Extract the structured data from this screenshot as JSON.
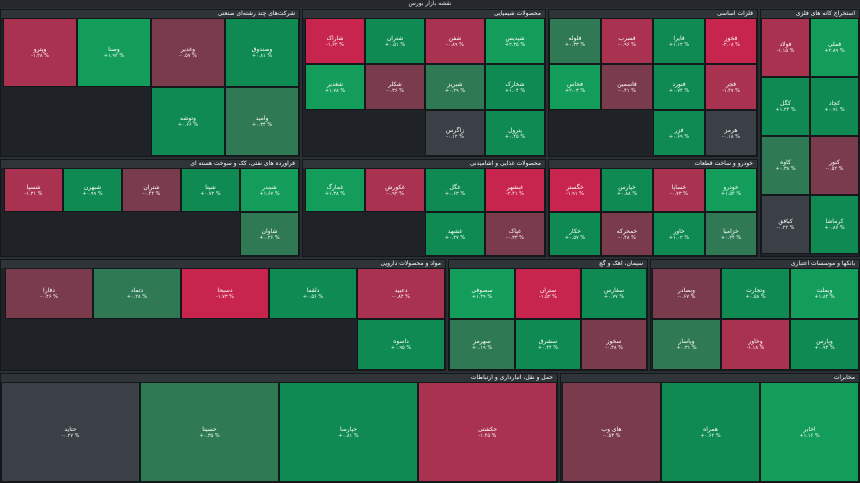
{
  "header": {
    "title": "نقشه بازار بورس"
  },
  "palette": {
    "strong_pos": "#139c5a",
    "pos": "#0f8a52",
    "weak_pos": "#2f7a55",
    "neutral": "#3b4046",
    "weak_neg": "#7a3b4c",
    "neg": "#a8324f",
    "strong_neg": "#c7254e"
  },
  "sectors": [
    {
      "name": "استخراج کانه های فلزی",
      "tiles": [
        {
          "s": "فملی",
          "c": "+۲.۸۹ %",
          "t": "strong_pos"
        },
        {
          "s": "فولاد",
          "c": "-۱.۱۵ %",
          "t": "neg"
        },
        {
          "s": "کچاد",
          "c": "+۰.۹۱ %",
          "t": "pos"
        },
        {
          "s": "کگل",
          "c": "+۱.۲۴ %",
          "t": "pos"
        },
        {
          "s": "کنور",
          "c": "-۰.۵۲ %",
          "t": "weak_neg"
        },
        {
          "s": "کاوه",
          "c": "+۰.۳۸ %",
          "t": "weak_pos"
        },
        {
          "s": "کرماشا",
          "c": "+۰.۸۷ %",
          "t": "pos"
        },
        {
          "s": "کبافق",
          "c": "-۰.۲۲ %",
          "t": "neutral"
        }
      ]
    },
    {
      "name": "فلزات اساسی",
      "tiles": [
        {
          "s": "فخوز",
          "c": "-۲.۰۸ %",
          "t": "strong_neg"
        },
        {
          "s": "فایرا",
          "c": "+۱.۱۲ %",
          "t": "pos"
        },
        {
          "s": "فسرب",
          "c": "-۰.۹۶ %",
          "t": "neg"
        },
        {
          "s": "فلوله",
          "c": "+۰.۳۳ %",
          "t": "weak_pos"
        },
        {
          "s": "فجر",
          "c": "-۱.۴۷ %",
          "t": "neg"
        },
        {
          "s": "فنورد",
          "c": "+۰.۷۴ %",
          "t": "pos"
        },
        {
          "s": "فاسمین",
          "c": "-۰.۴۱ %",
          "t": "weak_neg"
        },
        {
          "s": "فخاس",
          "c": "+۲.۰۳ %",
          "t": "strong_pos"
        },
        {
          "s": "هرمز",
          "c": "-۰.۱۸ %",
          "t": "neutral"
        },
        {
          "s": "فزر",
          "c": "+۰.۶۹ %",
          "t": "pos"
        }
      ]
    },
    {
      "name": "محصولات شیمیایی",
      "tiles": [
        {
          "s": "شپدیس",
          "c": "+۲.۳۵ %",
          "t": "strong_pos"
        },
        {
          "s": "شفن",
          "c": "-۰.۸۹ %",
          "t": "neg"
        },
        {
          "s": "شتران",
          "c": "+۰.۵۱ %",
          "t": "pos"
        },
        {
          "s": "شاراک",
          "c": "-۱.۶۲ %",
          "t": "strong_neg"
        },
        {
          "s": "شخارک",
          "c": "+۱.۰۴ %",
          "t": "pos"
        },
        {
          "s": "شبریز",
          "c": "+۰.۲۹ %",
          "t": "weak_pos"
        },
        {
          "s": "شکلر",
          "c": "-۰.۳۶ %",
          "t": "weak_neg"
        },
        {
          "s": "شغدیر",
          "c": "+۱.۷۸ %",
          "t": "strong_pos"
        },
        {
          "s": "پترول",
          "c": "+۰.۴۵ %",
          "t": "pos"
        },
        {
          "s": "زاگرس",
          "c": "-۰.۱۲ %",
          "t": "neutral"
        }
      ]
    },
    {
      "name": "شرکت‌های چند رشته‌ای صنعتی",
      "tiles": [
        {
          "s": "وصندوق",
          "c": "+۰.۸۱ %",
          "t": "pos"
        },
        {
          "s": "وغدیر",
          "c": "-۰.۵۷ %",
          "t": "weak_neg"
        },
        {
          "s": "وصنا",
          "c": "+۱.۹۲ %",
          "t": "strong_pos"
        },
        {
          "s": "وپترو",
          "c": "-۱.۲۸ %",
          "t": "neg"
        },
        {
          "s": "وامید",
          "c": "+۰.۳۴ %",
          "t": "weak_pos"
        },
        {
          "s": "وتوشه",
          "c": "+۰.۶۶ %",
          "t": "pos"
        }
      ]
    },
    {
      "name": "خودرو و ساخت قطعات",
      "tiles": [
        {
          "s": "خودرو",
          "c": "+۱.۵۴ %",
          "t": "strong_pos"
        },
        {
          "s": "خساپا",
          "c": "-۰.۷۳ %",
          "t": "neg"
        },
        {
          "s": "خپارس",
          "c": "+۰.۸۸ %",
          "t": "pos"
        },
        {
          "s": "خگستر",
          "c": "-۱.۹۱ %",
          "t": "strong_neg"
        },
        {
          "s": "خزامیا",
          "c": "+۰.۲۴ %",
          "t": "weak_pos"
        },
        {
          "s": "خاور",
          "c": "+۱.۰۲ %",
          "t": "pos"
        },
        {
          "s": "خمحرکه",
          "c": "-۰.۴۸ %",
          "t": "weak_neg"
        },
        {
          "s": "خکار",
          "c": "+۰.۵۷ %",
          "t": "pos"
        }
      ]
    },
    {
      "name": "محصولات غذایی و آشامیدنی",
      "tiles": [
        {
          "s": "غبشهر",
          "c": "-۲.۴۱ %",
          "t": "strong_neg"
        },
        {
          "s": "غگل",
          "c": "+۰.۶۳ %",
          "t": "pos"
        },
        {
          "s": "غکورش",
          "c": "-۰.۹۲ %",
          "t": "neg"
        },
        {
          "s": "غمارگ",
          "c": "+۱.۳۸ %",
          "t": "strong_pos"
        },
        {
          "s": "غپاک",
          "c": "-۰.۳۳ %",
          "t": "weak_neg"
        },
        {
          "s": "غشهد",
          "c": "+۰.۴۷ %",
          "t": "pos"
        }
      ]
    },
    {
      "name": "فرآورده های نفتی، کک و سوخت هسته ای",
      "tiles": [
        {
          "s": "شبندر",
          "c": "+۱.۶۷ %",
          "t": "strong_pos"
        },
        {
          "s": "شپنا",
          "c": "+۰.۷۲ %",
          "t": "pos"
        },
        {
          "s": "شتران",
          "c": "-۰.۴۴ %",
          "t": "weak_neg"
        },
        {
          "s": "شبهرن",
          "c": "+۰.۹۹ %",
          "t": "pos"
        },
        {
          "s": "شسپا",
          "c": "-۱.۳۱ %",
          "t": "neg"
        },
        {
          "s": "شاوان",
          "c": "+۰.۲۶ %",
          "t": "weak_pos"
        }
      ]
    },
    {
      "name": "بانکها و موسسات اعتباری",
      "tiles": [
        {
          "s": "وبملت",
          "c": "+۱.۸۴ %",
          "t": "strong_pos"
        },
        {
          "s": "وتجارت",
          "c": "+۰.۵۸ %",
          "t": "pos"
        },
        {
          "s": "وبصادر",
          "c": "-۰.۶۷ %",
          "t": "weak_neg"
        },
        {
          "s": "وپارس",
          "c": "+۰.۹۳ %",
          "t": "pos"
        },
        {
          "s": "وخاور",
          "c": "-۱.۱۸ %",
          "t": "neg"
        },
        {
          "s": "وپاسار",
          "c": "+۰.۳۱ %",
          "t": "weak_pos"
        }
      ]
    },
    {
      "name": "سیمان، آهک و گچ",
      "tiles": [
        {
          "s": "سفارس",
          "c": "+۰.۷۷ %",
          "t": "pos"
        },
        {
          "s": "ستران",
          "c": "-۱.۵۲ %",
          "t": "strong_neg"
        },
        {
          "s": "سصوفی",
          "c": "+۱.۲۹ %",
          "t": "strong_pos"
        },
        {
          "s": "سخوز",
          "c": "-۰.۳۸ %",
          "t": "weak_neg"
        },
        {
          "s": "سشرق",
          "c": "+۰.۴۴ %",
          "t": "pos"
        },
        {
          "s": "سهرمز",
          "c": "+۰.۱۹ %",
          "t": "weak_pos"
        }
      ]
    },
    {
      "name": "مواد و محصولات دارویی",
      "tiles": [
        {
          "s": "دعبید",
          "c": "-۰.۸۴ %",
          "t": "neg"
        },
        {
          "s": "دلقما",
          "c": "+۰.۵۶ %",
          "t": "pos"
        },
        {
          "s": "دسبحا",
          "c": "-۱.۷۳ %",
          "t": "strong_neg"
        },
        {
          "s": "دتماد",
          "c": "+۰.۲۸ %",
          "t": "weak_pos"
        },
        {
          "s": "دفارا",
          "c": "-۰.۴۶ %",
          "t": "weak_neg"
        },
        {
          "s": "داسوه",
          "c": "+۰.۹۵ %",
          "t": "pos"
        }
      ]
    },
    {
      "name": "مخابرات",
      "tiles": [
        {
          "s": "اخابر",
          "c": "+۱.۱۶ %",
          "t": "strong_pos"
        },
        {
          "s": "همراه",
          "c": "+۰.۶۲ %",
          "t": "pos"
        },
        {
          "s": "های وب",
          "c": "-۰.۵۳ %",
          "t": "weak_neg"
        }
      ]
    },
    {
      "name": "حمل و نقل، انبارداری و ارتباطات",
      "tiles": [
        {
          "s": "حکشتی",
          "c": "-۱.۴۵ %",
          "t": "neg"
        },
        {
          "s": "حپارسا",
          "c": "+۰.۸۱ %",
          "t": "pos"
        },
        {
          "s": "حسینا",
          "c": "+۰.۳۵ %",
          "t": "weak_pos"
        },
        {
          "s": "حتاید",
          "c": "-۰.۲۷ %",
          "t": "neutral"
        }
      ]
    }
  ]
}
